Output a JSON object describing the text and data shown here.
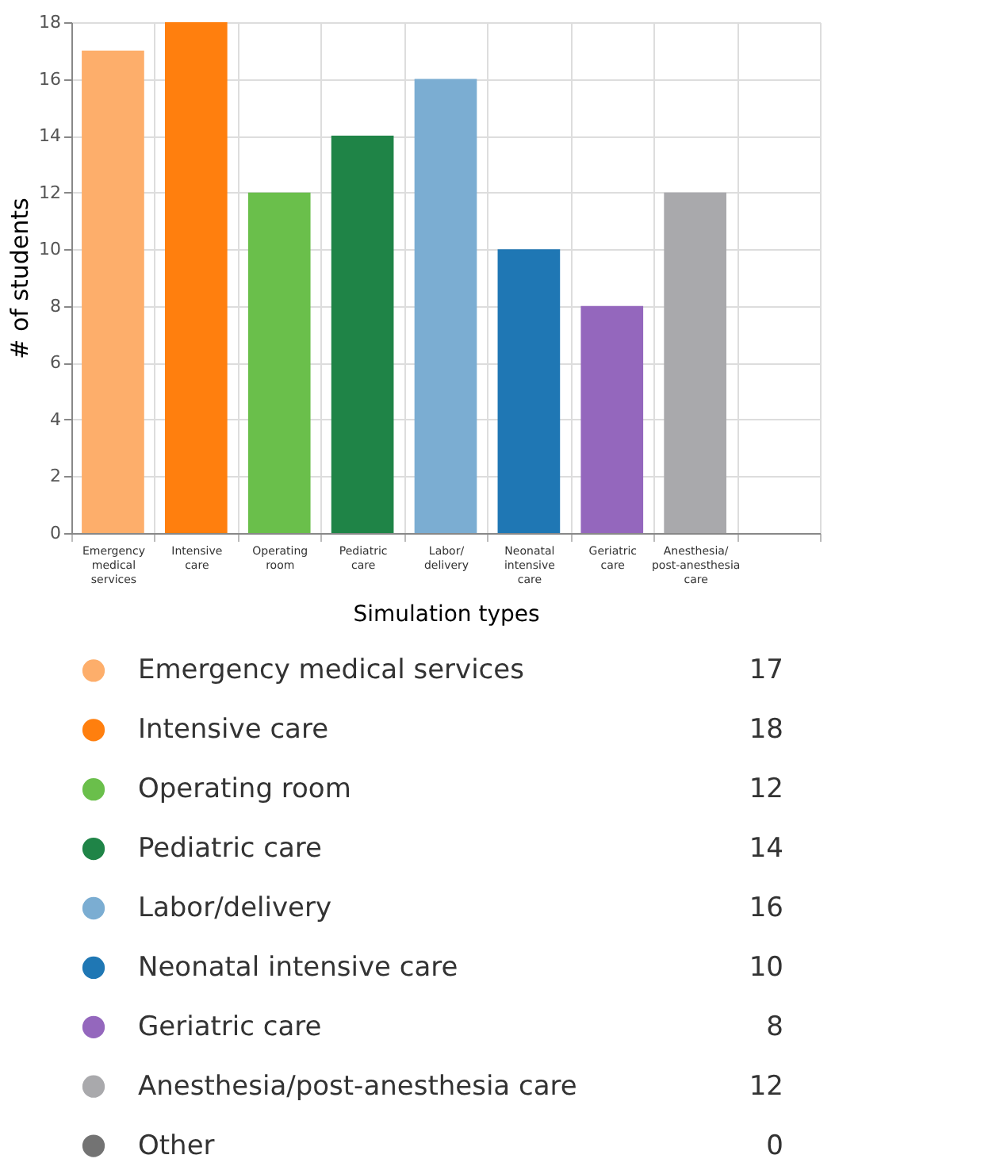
{
  "chart_data": [
    {
      "type": "bar",
      "xlabel": "Simulation types",
      "ylabel": "# of students",
      "categories": [
        "Emergency medical services",
        "Intensive care",
        "Operating room",
        "Pediatric care",
        "Labor/delivery",
        "Neonatal intensive care",
        "Geriatric care",
        "Anesthesia/post-anesthesia care",
        null
      ],
      "values": [
        17,
        18,
        12,
        14,
        16,
        10,
        8,
        12,
        0
      ],
      "colors": [
        "#fdae6b",
        "#ff7f0e",
        "#6abf4b",
        "#1f8447",
        "#7badd2",
        "#1f77b4",
        "#9467bd",
        "#a9a9ac",
        "#737373"
      ],
      "ylim": [
        0,
        18
      ],
      "yticks": [
        0,
        2,
        4,
        6,
        8,
        10,
        12,
        14,
        16,
        18
      ],
      "grid": true
    },
    {
      "type": "other",
      "categories": [
        "Emergency medical services",
        "Intensive care",
        "Operating room",
        "Pediatric care",
        "Labor/delivery",
        "Neonatal intensive care",
        "Geriatric care",
        "Anesthesia/post-anesthesia care",
        "Other"
      ],
      "values": [
        17,
        18,
        12,
        14,
        16,
        10,
        8,
        12,
        0
      ],
      "colors": [
        "#fdae6b",
        "#ff7f0e",
        "#6abf4b",
        "#1f8447",
        "#7badd2",
        "#1f77b4",
        "#9467bd",
        "#a9a9ac",
        "#737373"
      ],
      "data_labels": true
    }
  ]
}
